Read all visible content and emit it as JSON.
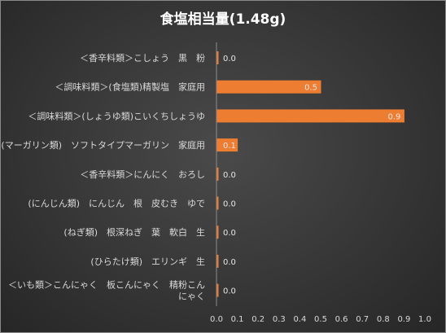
{
  "chart_data": {
    "type": "bar",
    "orientation": "horizontal",
    "title": "食塩相当量(1.48g)",
    "categories": [
      "＜香辛料類＞こしょう　黒　粉",
      "＜調味料類＞(食塩類)精製塩　家庭用",
      "＜調味料類＞(しょうゆ類)こいくちしょうゆ",
      "(マーガリン類)　ソフトタイプマーガリン　家庭用",
      "＜香辛料類＞にんにく　おろし",
      "(にんじん類)　にんじん　根　皮むき　ゆで",
      "(ねぎ類)　根深ねぎ　葉　軟白　生",
      "(ひらたけ類)　エリンギ　生",
      "＜いも類＞こんにゃく　板こんにゃく　精粉こんにゃく"
    ],
    "values": [
      0.0,
      0.5,
      0.9,
      0.1,
      0.0,
      0.0,
      0.0,
      0.0,
      0.0
    ],
    "data_labels": [
      "0.0",
      "0.5",
      "0.9",
      "0.1",
      "0.0",
      "0.0",
      "0.0",
      "0.0",
      "0.0"
    ],
    "xlim": [
      0,
      1.0
    ],
    "xticks": [
      "0.0",
      "0.1",
      "0.2",
      "0.3",
      "0.4",
      "0.5",
      "0.6",
      "0.7",
      "0.8",
      "0.9",
      "1.0"
    ],
    "bar_color": "#ED7D31",
    "grid": false,
    "legend": "none"
  }
}
